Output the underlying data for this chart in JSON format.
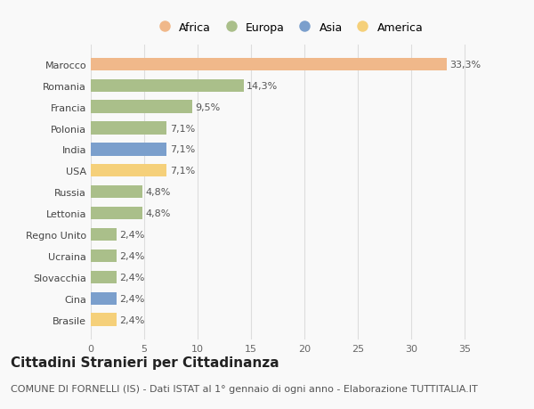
{
  "countries": [
    "Marocco",
    "Romania",
    "Francia",
    "Polonia",
    "India",
    "USA",
    "Russia",
    "Lettonia",
    "Regno Unito",
    "Ucraina",
    "Slovacchia",
    "Cina",
    "Brasile"
  ],
  "values": [
    33.3,
    14.3,
    9.5,
    7.1,
    7.1,
    7.1,
    4.8,
    4.8,
    2.4,
    2.4,
    2.4,
    2.4,
    2.4
  ],
  "labels": [
    "33,3%",
    "14,3%",
    "9,5%",
    "7,1%",
    "7,1%",
    "7,1%",
    "4,8%",
    "4,8%",
    "2,4%",
    "2,4%",
    "2,4%",
    "2,4%",
    "2,4%"
  ],
  "continents": [
    "Africa",
    "Europa",
    "Europa",
    "Europa",
    "Asia",
    "America",
    "Europa",
    "Europa",
    "Europa",
    "Europa",
    "Europa",
    "Asia",
    "America"
  ],
  "colors": {
    "Africa": "#F0B88A",
    "Europa": "#AABF8A",
    "Asia": "#7B9FCC",
    "America": "#F5D07A"
  },
  "legend_order": [
    "Africa",
    "Europa",
    "Asia",
    "America"
  ],
  "title": "Cittadini Stranieri per Cittadinanza",
  "subtitle": "COMUNE DI FORNELLI (IS) - Dati ISTAT al 1° gennaio di ogni anno - Elaborazione TUTTITALIA.IT",
  "xlim": [
    0,
    37
  ],
  "xticks": [
    0,
    5,
    10,
    15,
    20,
    25,
    30,
    35
  ],
  "background_color": "#f9f9f9",
  "grid_color": "#dddddd",
  "bar_height": 0.6,
  "title_fontsize": 11,
  "subtitle_fontsize": 8,
  "label_fontsize": 8,
  "tick_fontsize": 8,
  "legend_fontsize": 9
}
